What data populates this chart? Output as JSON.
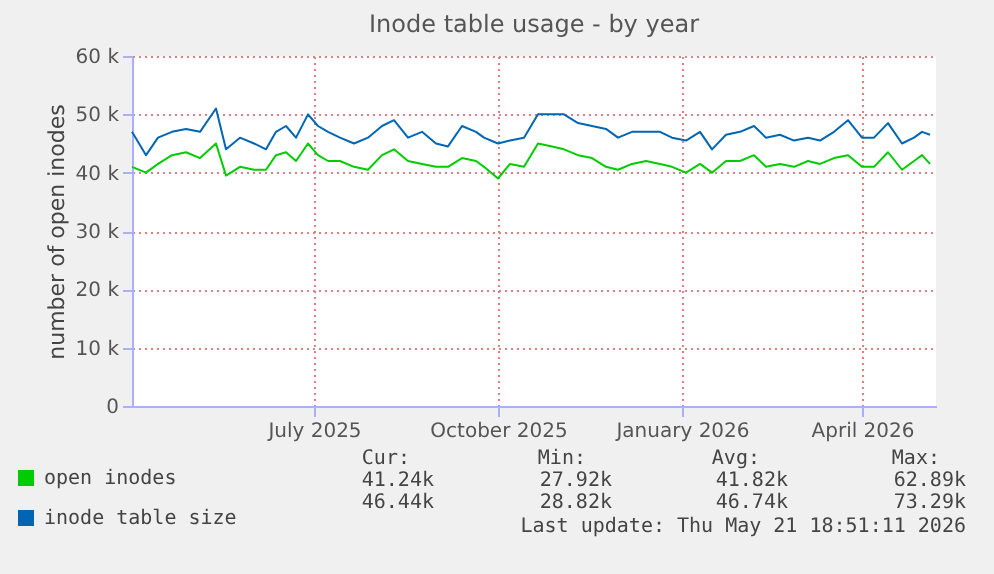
{
  "chart_data": {
    "type": "line",
    "title": "Inode table usage - by year",
    "ylabel": "number of open inodes",
    "x": [
      "2025-04-16",
      "2025-04-23",
      "2025-04-29",
      "2025-05-06",
      "2025-05-13",
      "2025-05-20",
      "2025-05-28",
      "2025-06-02",
      "2025-06-09",
      "2025-06-16",
      "2025-06-22",
      "2025-06-27",
      "2025-07-02",
      "2025-07-07",
      "2025-07-13",
      "2025-07-18",
      "2025-07-23",
      "2025-07-29",
      "2025-08-05",
      "2025-08-12",
      "2025-08-19",
      "2025-08-25",
      "2025-09-01",
      "2025-09-08",
      "2025-09-15",
      "2025-09-21",
      "2025-09-28",
      "2025-10-05",
      "2025-10-09",
      "2025-10-16",
      "2025-10-22",
      "2025-10-29",
      "2025-11-05",
      "2025-11-12",
      "2025-11-18",
      "2025-11-25",
      "2025-12-02",
      "2025-12-09",
      "2025-12-15",
      "2025-12-22",
      "2025-12-29",
      "2026-01-05",
      "2026-01-11",
      "2026-01-18",
      "2026-01-25",
      "2026-01-31",
      "2026-02-07",
      "2026-02-14",
      "2026-02-21",
      "2026-02-27",
      "2026-03-06",
      "2026-03-13",
      "2026-03-20",
      "2026-03-26",
      "2026-04-02",
      "2026-04-09",
      "2026-04-16",
      "2026-04-22",
      "2026-04-29",
      "2026-05-06",
      "2026-05-12",
      "2026-05-16",
      "2026-05-20"
    ],
    "series": [
      {
        "name": "open inodes",
        "color": "#00cc00",
        "values": [
          41000,
          40000,
          41500,
          43000,
          43500,
          42500,
          45000,
          39500,
          41000,
          40500,
          40500,
          43000,
          43500,
          42000,
          45000,
          43000,
          42000,
          42000,
          41000,
          40500,
          43000,
          44000,
          42000,
          41500,
          41000,
          41000,
          42500,
          42000,
          41000,
          39000,
          41500,
          41000,
          45000,
          44500,
          44000,
          43000,
          42500,
          41000,
          40500,
          41500,
          42000,
          41500,
          41000,
          40000,
          41500,
          40000,
          42000,
          42000,
          43000,
          41000,
          41500,
          41000,
          42000,
          41500,
          42500,
          43000,
          41000,
          41000,
          43500,
          40500,
          42000,
          43000,
          41500
        ]
      },
      {
        "name": "inode table size",
        "color": "#0066b3",
        "values": [
          47000,
          43000,
          46000,
          47000,
          47500,
          47000,
          51000,
          44000,
          46000,
          45000,
          44000,
          47000,
          48000,
          46000,
          50000,
          48000,
          47000,
          46000,
          45000,
          46000,
          48000,
          49000,
          46000,
          47000,
          45000,
          44500,
          48000,
          47000,
          46000,
          45000,
          45500,
          46000,
          50000,
          50000,
          50000,
          48500,
          48000,
          47500,
          46000,
          47000,
          47000,
          47000,
          46000,
          45500,
          47000,
          44000,
          46500,
          47000,
          48000,
          46000,
          46500,
          45500,
          46000,
          45500,
          47000,
          49000,
          46000,
          46000,
          48500,
          45000,
          46000,
          47000,
          46500
        ]
      }
    ],
    "xlim": [
      "2025-04-16",
      "2026-05-23"
    ],
    "xticks": [
      {
        "value": "2025-07-16",
        "label": "July 2025"
      },
      {
        "value": "2025-10-16",
        "label": "October 2025"
      },
      {
        "value": "2026-01-16",
        "label": "January 2026"
      },
      {
        "value": "2026-04-16",
        "label": "April 2026"
      }
    ],
    "ylim": [
      0,
      60000
    ],
    "yticks": [
      {
        "value": 0,
        "label": "0"
      },
      {
        "value": 10000,
        "label": "10 k"
      },
      {
        "value": 20000,
        "label": "20 k"
      },
      {
        "value": 30000,
        "label": "30 k"
      },
      {
        "value": 40000,
        "label": "40 k"
      },
      {
        "value": 50000,
        "label": "50 k"
      },
      {
        "value": 60000,
        "label": "60 k"
      }
    ],
    "grid": true,
    "legend": "bottom left",
    "marker": "none",
    "line_style": "solid",
    "annotations": [
      "Cur:",
      "Min:",
      "Avg:",
      "Max:",
      "41.24k",
      "27.92k",
      "41.82k",
      "62.89k",
      "46.44k",
      "28.82k",
      "46.74k",
      "73.29k",
      "Last update: Thu May 21 18:51:11 2026"
    ]
  }
}
